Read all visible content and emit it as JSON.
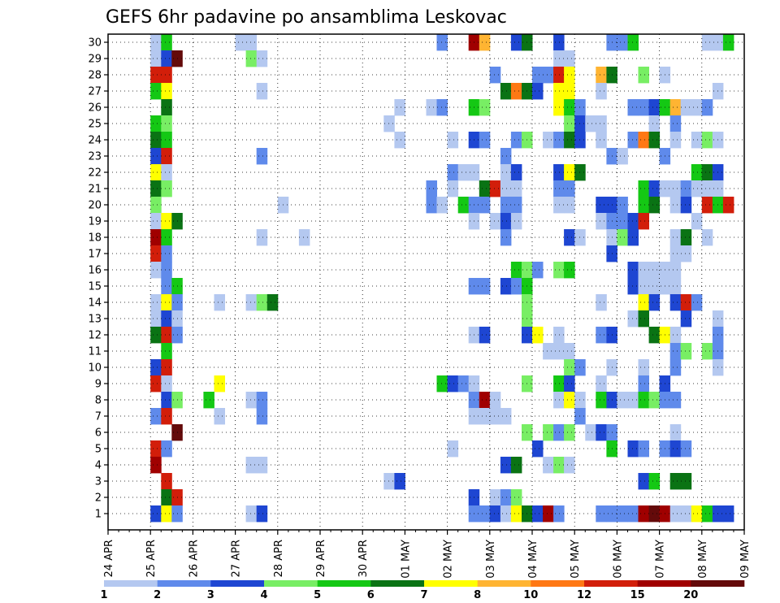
{
  "chart_data": {
    "type": "heatmap",
    "title": "GEFS 6hr padavine po ansamblima Leskovac",
    "xlabel": "",
    "ylabel": "",
    "x_tick_labels": [
      "24 APR",
      "25 APR",
      "26 APR",
      "27 APR",
      "28 APR",
      "29 APR",
      "30 APR",
      "01 MAY",
      "02 MAY",
      "03 MAY",
      "04 MAY",
      "05 MAY",
      "06 MAY",
      "07 MAY",
      "08 MAY",
      "09 MAY"
    ],
    "y_tick_labels": [
      "1",
      "2",
      "3",
      "4",
      "5",
      "6",
      "7",
      "8",
      "9",
      "10",
      "11",
      "12",
      "13",
      "14",
      "15",
      "16",
      "17",
      "18",
      "19",
      "20",
      "21",
      "22",
      "23",
      "24",
      "25",
      "26",
      "27",
      "28",
      "29",
      "30"
    ],
    "ylim": [
      0,
      30
    ],
    "x_step": "6hr",
    "grid": true,
    "legend_position": "bottom",
    "levels": [
      "1",
      "2",
      "3",
      "4",
      "5",
      "6",
      "7",
      "8",
      "10",
      "12",
      "15",
      "20"
    ],
    "level_colors": [
      "#b4c8f0",
      "#5f8aeb",
      "#1e46d2",
      "#78ee64",
      "#14c814",
      "#0a7314",
      "#ffff00",
      "#ffb432",
      "#ff7814",
      "#d21e0a",
      "#a00000",
      "#640a0a"
    ],
    "cells_note_cols": "column index = 6hr steps from 24 APR 00Z; member = ensemble row; category = index into levels",
    "cells": [
      [
        4,
        30,
        0
      ],
      [
        5,
        30,
        4
      ],
      [
        12,
        30,
        0
      ],
      [
        13,
        30,
        0
      ],
      [
        31,
        30,
        1
      ],
      [
        34,
        30,
        10
      ],
      [
        35,
        30,
        7
      ],
      [
        38,
        30,
        2
      ],
      [
        39,
        30,
        5
      ],
      [
        42,
        30,
        2
      ],
      [
        47,
        30,
        1
      ],
      [
        48,
        30,
        1
      ],
      [
        49,
        30,
        4
      ],
      [
        56,
        30,
        0
      ],
      [
        57,
        30,
        0
      ],
      [
        58,
        30,
        4
      ],
      [
        4,
        29,
        0
      ],
      [
        5,
        29,
        2
      ],
      [
        6,
        29,
        11
      ],
      [
        13,
        29,
        3
      ],
      [
        14,
        29,
        0
      ],
      [
        42,
        29,
        0
      ],
      [
        43,
        29,
        0
      ],
      [
        4,
        28,
        9
      ],
      [
        5,
        28,
        9
      ],
      [
        36,
        28,
        1
      ],
      [
        40,
        28,
        1
      ],
      [
        41,
        28,
        1
      ],
      [
        42,
        28,
        9
      ],
      [
        43,
        28,
        6
      ],
      [
        46,
        28,
        7
      ],
      [
        47,
        28,
        5
      ],
      [
        50,
        28,
        3
      ],
      [
        52,
        28,
        0
      ],
      [
        4,
        27,
        4
      ],
      [
        5,
        27,
        6
      ],
      [
        14,
        27,
        0
      ],
      [
        37,
        27,
        5
      ],
      [
        38,
        27,
        8
      ],
      [
        39,
        27,
        5
      ],
      [
        40,
        27,
        2
      ],
      [
        42,
        27,
        6
      ],
      [
        43,
        27,
        6
      ],
      [
        46,
        27,
        0
      ],
      [
        57,
        27,
        0
      ],
      [
        5,
        26,
        5
      ],
      [
        27,
        26,
        0
      ],
      [
        30,
        26,
        0
      ],
      [
        31,
        26,
        1
      ],
      [
        34,
        26,
        4
      ],
      [
        35,
        26,
        3
      ],
      [
        42,
        26,
        6
      ],
      [
        43,
        26,
        4
      ],
      [
        44,
        26,
        1
      ],
      [
        49,
        26,
        1
      ],
      [
        50,
        26,
        1
      ],
      [
        51,
        26,
        2
      ],
      [
        52,
        26,
        4
      ],
      [
        53,
        26,
        7
      ],
      [
        54,
        26,
        0
      ],
      [
        55,
        26,
        0
      ],
      [
        56,
        26,
        1
      ],
      [
        4,
        25,
        4
      ],
      [
        5,
        25,
        3
      ],
      [
        26,
        25,
        0
      ],
      [
        43,
        25,
        3
      ],
      [
        44,
        25,
        2
      ],
      [
        45,
        25,
        0
      ],
      [
        46,
        25,
        0
      ],
      [
        51,
        25,
        0
      ],
      [
        53,
        25,
        1
      ],
      [
        4,
        24,
        5
      ],
      [
        5,
        24,
        4
      ],
      [
        27,
        24,
        0
      ],
      [
        32,
        24,
        0
      ],
      [
        34,
        24,
        2
      ],
      [
        35,
        24,
        1
      ],
      [
        38,
        24,
        1
      ],
      [
        39,
        24,
        3
      ],
      [
        41,
        24,
        0
      ],
      [
        42,
        24,
        1
      ],
      [
        43,
        24,
        5
      ],
      [
        44,
        24,
        2
      ],
      [
        46,
        24,
        0
      ],
      [
        49,
        24,
        1
      ],
      [
        50,
        24,
        8
      ],
      [
        51,
        24,
        5
      ],
      [
        53,
        24,
        0
      ],
      [
        55,
        24,
        0
      ],
      [
        56,
        24,
        3
      ],
      [
        57,
        24,
        0
      ],
      [
        4,
        23,
        2
      ],
      [
        5,
        23,
        9
      ],
      [
        14,
        23,
        1
      ],
      [
        37,
        23,
        1
      ],
      [
        47,
        23,
        1
      ],
      [
        48,
        23,
        0
      ],
      [
        52,
        23,
        1
      ],
      [
        4,
        22,
        6
      ],
      [
        5,
        22,
        0
      ],
      [
        32,
        22,
        1
      ],
      [
        33,
        22,
        0
      ],
      [
        34,
        22,
        0
      ],
      [
        37,
        22,
        0
      ],
      [
        38,
        22,
        2
      ],
      [
        42,
        22,
        2
      ],
      [
        43,
        22,
        6
      ],
      [
        44,
        22,
        5
      ],
      [
        55,
        22,
        4
      ],
      [
        56,
        22,
        5
      ],
      [
        57,
        22,
        2
      ],
      [
        4,
        21,
        5
      ],
      [
        5,
        21,
        3
      ],
      [
        30,
        21,
        1
      ],
      [
        32,
        21,
        0
      ],
      [
        35,
        21,
        5
      ],
      [
        36,
        21,
        9
      ],
      [
        37,
        21,
        0
      ],
      [
        38,
        21,
        0
      ],
      [
        42,
        21,
        1
      ],
      [
        43,
        21,
        1
      ],
      [
        50,
        21,
        4
      ],
      [
        51,
        21,
        2
      ],
      [
        52,
        21,
        0
      ],
      [
        53,
        21,
        0
      ],
      [
        54,
        21,
        1
      ],
      [
        55,
        21,
        0
      ],
      [
        56,
        21,
        0
      ],
      [
        57,
        21,
        0
      ],
      [
        4,
        20,
        3
      ],
      [
        16,
        20,
        0
      ],
      [
        30,
        20,
        1
      ],
      [
        31,
        20,
        0
      ],
      [
        33,
        20,
        4
      ],
      [
        34,
        20,
        1
      ],
      [
        35,
        20,
        1
      ],
      [
        37,
        20,
        1
      ],
      [
        38,
        20,
        1
      ],
      [
        42,
        20,
        0
      ],
      [
        43,
        20,
        0
      ],
      [
        46,
        20,
        2
      ],
      [
        47,
        20,
        2
      ],
      [
        48,
        20,
        1
      ],
      [
        50,
        20,
        4
      ],
      [
        51,
        20,
        5
      ],
      [
        53,
        20,
        0
      ],
      [
        54,
        20,
        2
      ],
      [
        56,
        20,
        9
      ],
      [
        57,
        20,
        4
      ],
      [
        58,
        20,
        9
      ],
      [
        4,
        19,
        0
      ],
      [
        5,
        19,
        6
      ],
      [
        6,
        19,
        5
      ],
      [
        34,
        19,
        0
      ],
      [
        36,
        19,
        0
      ],
      [
        37,
        19,
        2
      ],
      [
        38,
        19,
        0
      ],
      [
        46,
        19,
        0
      ],
      [
        47,
        19,
        1
      ],
      [
        48,
        19,
        1
      ],
      [
        49,
        19,
        2
      ],
      [
        50,
        19,
        9
      ],
      [
        55,
        19,
        0
      ],
      [
        4,
        18,
        10
      ],
      [
        5,
        18,
        4
      ],
      [
        14,
        18,
        0
      ],
      [
        18,
        18,
        0
      ],
      [
        37,
        18,
        1
      ],
      [
        43,
        18,
        2
      ],
      [
        44,
        18,
        0
      ],
      [
        47,
        18,
        0
      ],
      [
        48,
        18,
        3
      ],
      [
        49,
        18,
        2
      ],
      [
        53,
        18,
        0
      ],
      [
        54,
        18,
        5
      ],
      [
        56,
        18,
        0
      ],
      [
        4,
        17,
        9
      ],
      [
        5,
        17,
        1
      ],
      [
        47,
        17,
        2
      ],
      [
        53,
        17,
        0
      ],
      [
        54,
        17,
        0
      ],
      [
        4,
        16,
        0
      ],
      [
        5,
        16,
        1
      ],
      [
        38,
        16,
        4
      ],
      [
        39,
        16,
        3
      ],
      [
        40,
        16,
        1
      ],
      [
        42,
        16,
        3
      ],
      [
        43,
        16,
        4
      ],
      [
        49,
        16,
        2
      ],
      [
        50,
        16,
        0
      ],
      [
        51,
        16,
        0
      ],
      [
        52,
        16,
        0
      ],
      [
        53,
        16,
        0
      ],
      [
        5,
        15,
        1
      ],
      [
        6,
        15,
        4
      ],
      [
        34,
        15,
        1
      ],
      [
        35,
        15,
        1
      ],
      [
        37,
        15,
        2
      ],
      [
        38,
        15,
        1
      ],
      [
        39,
        15,
        4
      ],
      [
        49,
        15,
        2
      ],
      [
        50,
        15,
        0
      ],
      [
        51,
        15,
        0
      ],
      [
        52,
        15,
        0
      ],
      [
        53,
        15,
        0
      ],
      [
        4,
        14,
        0
      ],
      [
        5,
        14,
        6
      ],
      [
        6,
        14,
        1
      ],
      [
        10,
        14,
        0
      ],
      [
        13,
        14,
        0
      ],
      [
        14,
        14,
        3
      ],
      [
        15,
        14,
        5
      ],
      [
        39,
        14,
        3
      ],
      [
        46,
        14,
        0
      ],
      [
        50,
        14,
        6
      ],
      [
        51,
        14,
        2
      ],
      [
        53,
        14,
        2
      ],
      [
        54,
        14,
        9
      ],
      [
        55,
        14,
        1
      ],
      [
        4,
        13,
        0
      ],
      [
        5,
        13,
        2
      ],
      [
        6,
        13,
        0
      ],
      [
        39,
        13,
        3
      ],
      [
        49,
        13,
        0
      ],
      [
        50,
        13,
        5
      ],
      [
        54,
        13,
        2
      ],
      [
        57,
        13,
        0
      ],
      [
        4,
        12,
        5
      ],
      [
        5,
        12,
        9
      ],
      [
        6,
        12,
        1
      ],
      [
        34,
        12,
        0
      ],
      [
        35,
        12,
        2
      ],
      [
        39,
        12,
        2
      ],
      [
        40,
        12,
        6
      ],
      [
        42,
        12,
        0
      ],
      [
        46,
        12,
        1
      ],
      [
        47,
        12,
        2
      ],
      [
        51,
        12,
        5
      ],
      [
        52,
        12,
        6
      ],
      [
        53,
        12,
        0
      ],
      [
        57,
        12,
        1
      ],
      [
        5,
        11,
        4
      ],
      [
        41,
        11,
        0
      ],
      [
        42,
        11,
        0
      ],
      [
        43,
        11,
        0
      ],
      [
        53,
        11,
        1
      ],
      [
        54,
        11,
        3
      ],
      [
        56,
        11,
        3
      ],
      [
        57,
        11,
        1
      ],
      [
        4,
        10,
        2
      ],
      [
        5,
        10,
        9
      ],
      [
        43,
        10,
        3
      ],
      [
        44,
        10,
        1
      ],
      [
        47,
        10,
        0
      ],
      [
        50,
        10,
        0
      ],
      [
        53,
        10,
        1
      ],
      [
        57,
        10,
        0
      ],
      [
        4,
        9,
        9
      ],
      [
        5,
        9,
        0
      ],
      [
        10,
        9,
        6
      ],
      [
        31,
        9,
        4
      ],
      [
        32,
        9,
        2
      ],
      [
        33,
        9,
        1
      ],
      [
        34,
        9,
        0
      ],
      [
        39,
        9,
        3
      ],
      [
        42,
        9,
        4
      ],
      [
        43,
        9,
        2
      ],
      [
        46,
        9,
        0
      ],
      [
        50,
        9,
        1
      ],
      [
        52,
        9,
        2
      ],
      [
        5,
        8,
        2
      ],
      [
        6,
        8,
        3
      ],
      [
        9,
        8,
        4
      ],
      [
        13,
        8,
        0
      ],
      [
        14,
        8,
        1
      ],
      [
        34,
        8,
        1
      ],
      [
        35,
        8,
        10
      ],
      [
        36,
        8,
        0
      ],
      [
        42,
        8,
        0
      ],
      [
        43,
        8,
        6
      ],
      [
        44,
        8,
        0
      ],
      [
        46,
        8,
        4
      ],
      [
        47,
        8,
        2
      ],
      [
        48,
        8,
        0
      ],
      [
        49,
        8,
        0
      ],
      [
        50,
        8,
        4
      ],
      [
        51,
        8,
        3
      ],
      [
        52,
        8,
        1
      ],
      [
        53,
        8,
        1
      ],
      [
        4,
        7,
        1
      ],
      [
        5,
        7,
        9
      ],
      [
        10,
        7,
        0
      ],
      [
        14,
        7,
        1
      ],
      [
        34,
        7,
        0
      ],
      [
        35,
        7,
        0
      ],
      [
        36,
        7,
        0
      ],
      [
        37,
        7,
        0
      ],
      [
        44,
        7,
        1
      ],
      [
        6,
        6,
        11
      ],
      [
        39,
        6,
        3
      ],
      [
        41,
        6,
        3
      ],
      [
        42,
        6,
        1
      ],
      [
        43,
        6,
        3
      ],
      [
        45,
        6,
        0
      ],
      [
        46,
        6,
        2
      ],
      [
        47,
        6,
        1
      ],
      [
        53,
        6,
        0
      ],
      [
        4,
        5,
        9
      ],
      [
        5,
        5,
        1
      ],
      [
        32,
        5,
        0
      ],
      [
        40,
        5,
        2
      ],
      [
        47,
        5,
        4
      ],
      [
        49,
        5,
        2
      ],
      [
        50,
        5,
        1
      ],
      [
        52,
        5,
        1
      ],
      [
        53,
        5,
        2
      ],
      [
        54,
        5,
        1
      ],
      [
        4,
        4,
        10
      ],
      [
        13,
        4,
        0
      ],
      [
        14,
        4,
        0
      ],
      [
        37,
        4,
        2
      ],
      [
        38,
        4,
        5
      ],
      [
        41,
        4,
        0
      ],
      [
        42,
        4,
        3
      ],
      [
        43,
        4,
        0
      ],
      [
        5,
        3,
        9
      ],
      [
        26,
        3,
        0
      ],
      [
        27,
        3,
        2
      ],
      [
        50,
        3,
        2
      ],
      [
        51,
        3,
        4
      ],
      [
        53,
        3,
        5
      ],
      [
        54,
        3,
        5
      ],
      [
        5,
        2,
        5
      ],
      [
        6,
        2,
        9
      ],
      [
        34,
        2,
        2
      ],
      [
        36,
        2,
        0
      ],
      [
        37,
        2,
        1
      ],
      [
        38,
        2,
        3
      ],
      [
        4,
        1,
        2
      ],
      [
        5,
        1,
        6
      ],
      [
        6,
        1,
        1
      ],
      [
        13,
        1,
        0
      ],
      [
        14,
        1,
        2
      ],
      [
        34,
        1,
        1
      ],
      [
        35,
        1,
        1
      ],
      [
        36,
        1,
        2
      ],
      [
        37,
        1,
        0
      ],
      [
        38,
        1,
        6
      ],
      [
        39,
        1,
        5
      ],
      [
        40,
        1,
        2
      ],
      [
        41,
        1,
        10
      ],
      [
        42,
        1,
        1
      ],
      [
        46,
        1,
        1
      ],
      [
        47,
        1,
        1
      ],
      [
        48,
        1,
        1
      ],
      [
        49,
        1,
        1
      ],
      [
        50,
        1,
        10
      ],
      [
        51,
        1,
        11
      ],
      [
        52,
        1,
        10
      ],
      [
        53,
        1,
        0
      ],
      [
        54,
        1,
        0
      ],
      [
        55,
        1,
        6
      ],
      [
        56,
        1,
        4
      ],
      [
        57,
        1,
        2
      ],
      [
        58,
        1,
        2
      ]
    ]
  }
}
